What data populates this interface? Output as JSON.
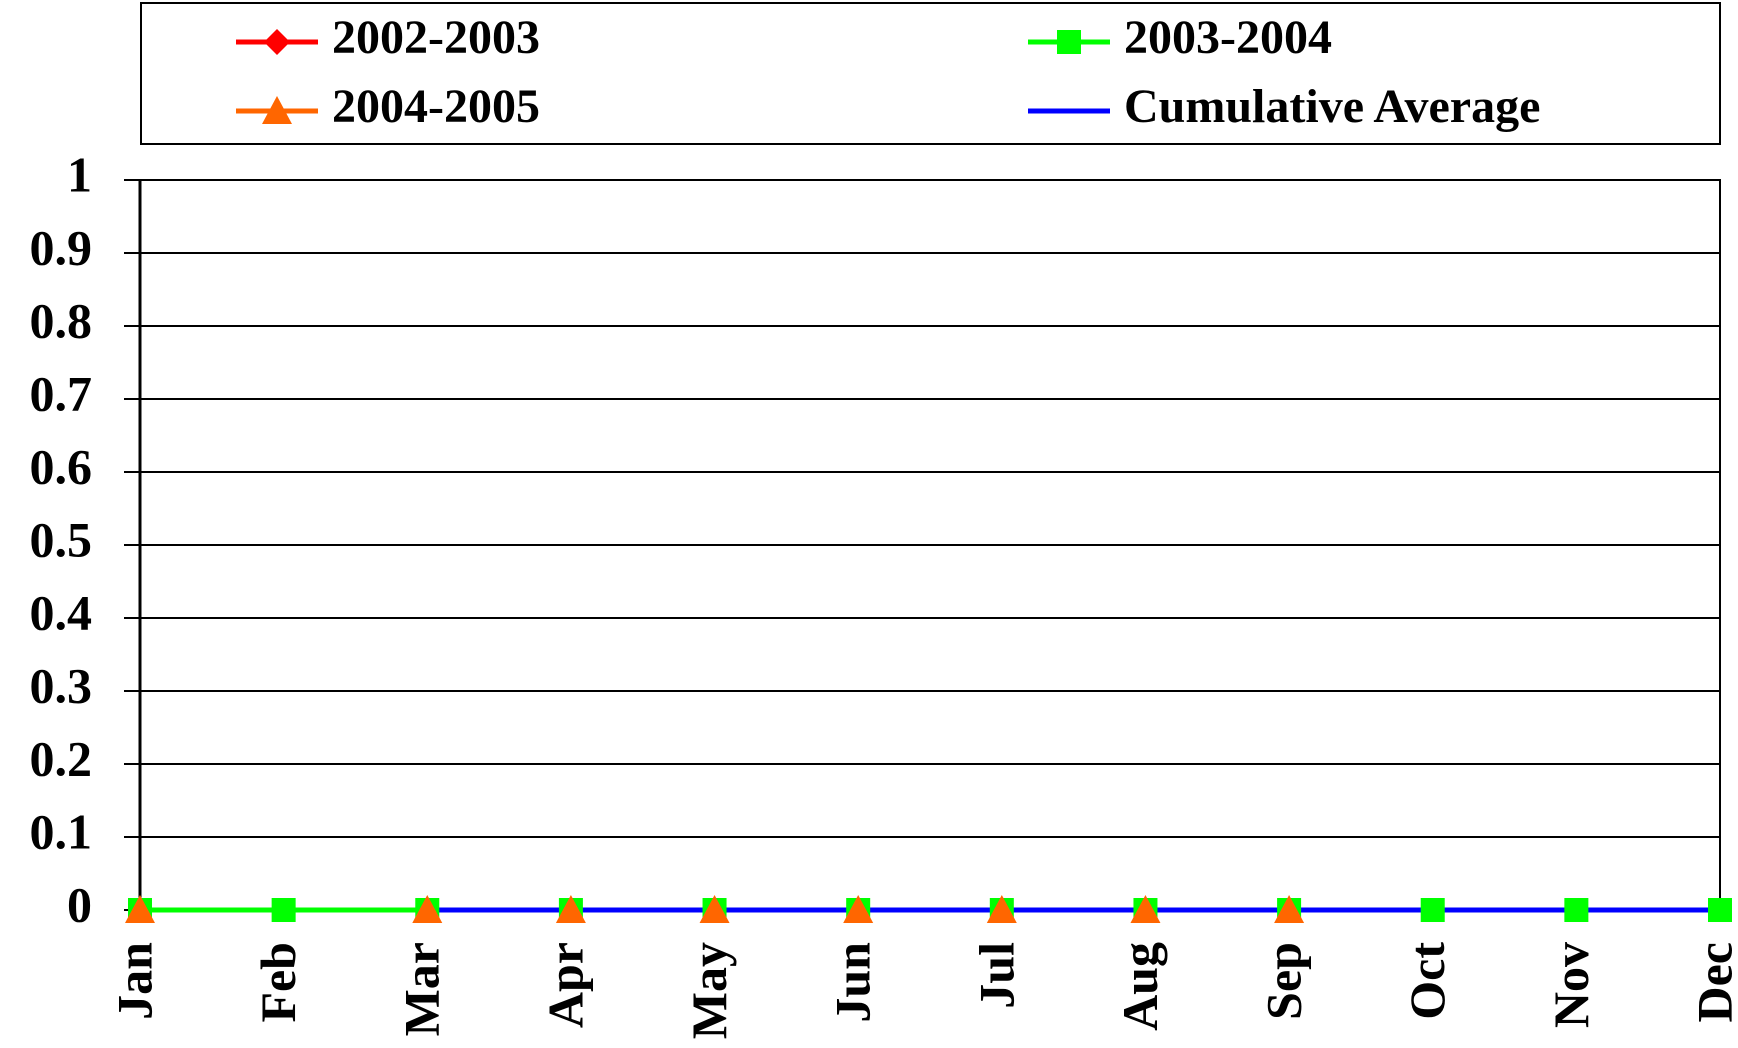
{
  "chart_data": {
    "type": "line",
    "categories": [
      "Jan",
      "Feb",
      "Mar",
      "Apr",
      "May",
      "Jun",
      "Jul",
      "Aug",
      "Sep",
      "Oct",
      "Nov",
      "Dec"
    ],
    "series": [
      {
        "name": "2002-2003",
        "color": "#ff0000",
        "marker": "diamond",
        "values": [
          null,
          null,
          null,
          null,
          null,
          null,
          null,
          null,
          null,
          null,
          null,
          null
        ]
      },
      {
        "name": "2003-2004",
        "color": "#00ff00",
        "marker": "square",
        "values": [
          0,
          0,
          0,
          0,
          0,
          0,
          0,
          0,
          0,
          0,
          0,
          0
        ]
      },
      {
        "name": "2004-2005",
        "color": "#ff6600",
        "marker": "triangle",
        "values": [
          0,
          null,
          0,
          0,
          0,
          0,
          0,
          0,
          0,
          null,
          null,
          null
        ]
      },
      {
        "name": "Cumulative Average",
        "color": "#0000ff",
        "marker": "none",
        "values": [
          null,
          null,
          0,
          0,
          0,
          0,
          0,
          0,
          0,
          0,
          0,
          0
        ]
      }
    ],
    "ylim": [
      0,
      1
    ],
    "yticks": [
      0,
      0.1,
      0.2,
      0.3,
      0.4,
      0.5,
      0.6,
      0.7,
      0.8,
      0.9,
      1
    ],
    "grid": true,
    "legend": "top"
  }
}
